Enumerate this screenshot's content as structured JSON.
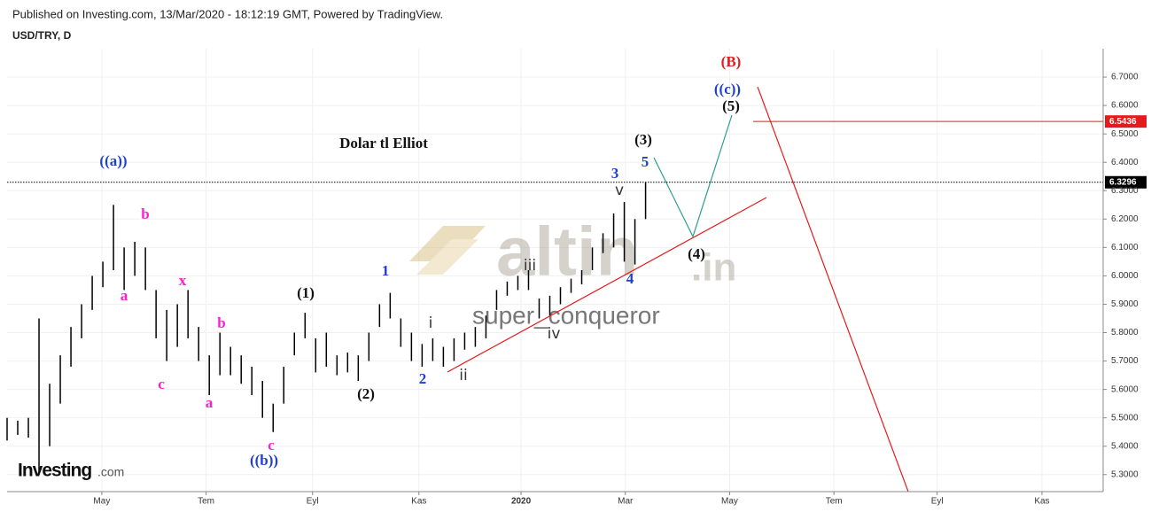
{
  "header": {
    "published": "Published on Investing.com, 13/Mar/2020 - 18:12:19 GMT, Powered by TradingView.",
    "symbol": "USD/TRY, D",
    "logo": "Investing",
    "logo_suffix": ".com"
  },
  "watermark": {
    "brand": "altin",
    "brand_suffix": ".in",
    "user": "super_conqueror"
  },
  "chart_data": {
    "type": "ohlc",
    "color": "#000000",
    "high": [
      5.5,
      5.49,
      5.5,
      5.85,
      5.62,
      5.72,
      5.82,
      5.9,
      6.0,
      6.05,
      6.25,
      6.1,
      6.12,
      6.1,
      5.95,
      5.88,
      5.9,
      5.95,
      5.82,
      5.72,
      5.8,
      5.75,
      5.72,
      5.68,
      5.63,
      5.55,
      5.68,
      5.8,
      5.87,
      5.78,
      5.8,
      5.72,
      5.73,
      5.72,
      5.8,
      5.9,
      5.94,
      5.85,
      5.8,
      5.76,
      5.78,
      5.75,
      5.78,
      5.8,
      5.82,
      5.86,
      5.95,
      5.98,
      6.0,
      6.02,
      5.92,
      5.93,
      5.96,
      5.99,
      6.02,
      6.1,
      6.15,
      6.22,
      6.26,
      6.2,
      6.33
    ],
    "low": [
      5.42,
      5.44,
      5.43,
      5.3,
      5.4,
      5.55,
      5.68,
      5.78,
      5.88,
      5.96,
      6.02,
      5.95,
      6.0,
      5.95,
      5.78,
      5.7,
      5.75,
      5.78,
      5.7,
      5.58,
      5.65,
      5.65,
      5.62,
      5.58,
      5.5,
      5.45,
      5.55,
      5.72,
      5.78,
      5.66,
      5.68,
      5.65,
      5.66,
      5.63,
      5.7,
      5.82,
      5.85,
      5.75,
      5.7,
      5.68,
      5.7,
      5.68,
      5.7,
      5.74,
      5.75,
      5.78,
      5.88,
      5.93,
      5.95,
      5.95,
      5.85,
      5.86,
      5.9,
      5.94,
      5.97,
      6.02,
      6.08,
      6.1,
      6.05,
      6.04,
      6.2
    ],
    "xlim": [
      0,
      103
    ],
    "xticks": [
      {
        "value": 8.9,
        "label": "May"
      },
      {
        "value": 18.7,
        "label": "Tem"
      },
      {
        "value": 28.7,
        "label": "Eyl"
      },
      {
        "value": 38.7,
        "label": "Kas"
      },
      {
        "value": 48.3,
        "label": "2020"
      },
      {
        "value": 58.1,
        "label": "Mar"
      },
      {
        "value": 67.9,
        "label": "May"
      },
      {
        "value": 77.7,
        "label": "Tem"
      },
      {
        "value": 87.4,
        "label": "Eyl"
      },
      {
        "value": 97.25,
        "label": "Kas"
      }
    ],
    "ylim": [
      5.24,
      6.8
    ],
    "yticks": [
      {
        "value": 5.3,
        "label": "5.3000"
      },
      {
        "value": 5.4,
        "label": "5.4000"
      },
      {
        "value": 5.5,
        "label": "5.5000"
      },
      {
        "value": 5.6,
        "label": "5.6000"
      },
      {
        "value": 5.7,
        "label": "5.7000"
      },
      {
        "value": 5.8,
        "label": "5.8000"
      },
      {
        "value": 5.9,
        "label": "5.9000"
      },
      {
        "value": 6.0,
        "label": "6.0000"
      },
      {
        "value": 6.1,
        "label": "6.1000"
      },
      {
        "value": 6.2,
        "label": "6.2000"
      },
      {
        "value": 6.3,
        "label": "6.3000"
      },
      {
        "value": 6.4,
        "label": "6.4000"
      },
      {
        "value": 6.5,
        "label": "6.5000"
      },
      {
        "value": 6.6,
        "label": "6.6000"
      },
      {
        "value": 6.7,
        "label": "6.7000"
      }
    ],
    "grid": true,
    "price_lines": [
      {
        "value": 6.3296,
        "color": "#000000",
        "style": "dotted"
      },
      {
        "value": 6.5436,
        "color": "#e41a1c",
        "style": "solid"
      }
    ],
    "title": "Dolar tl Elliot",
    "annotations": [
      "((a))",
      "b",
      "a",
      "x",
      "c",
      "b",
      "a",
      "c",
      "((b))",
      "(1)",
      "(2)",
      "1",
      "2",
      "i",
      "ii",
      "iii",
      "iv",
      "3",
      "v",
      "4",
      "5",
      "(3)",
      "(4)",
      "(5)",
      "((c))",
      "(B)"
    ]
  }
}
